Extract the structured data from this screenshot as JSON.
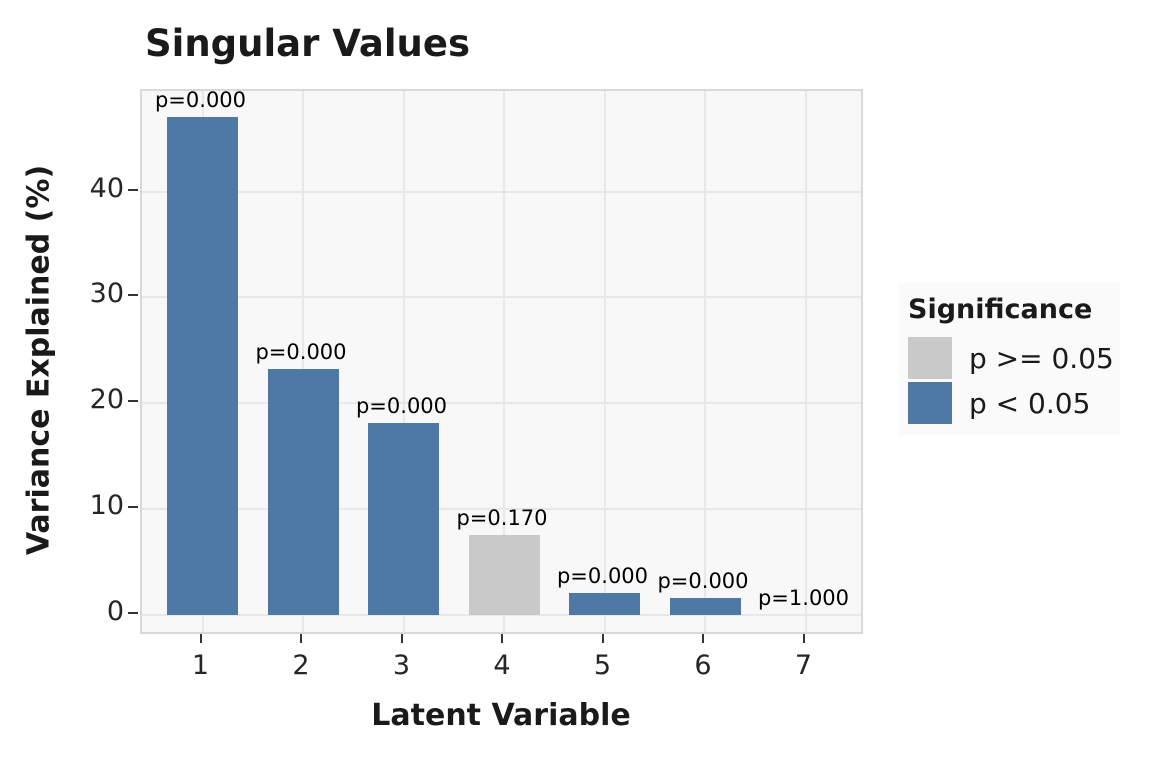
{
  "chart_data": {
    "type": "bar",
    "title": "Singular Values",
    "xlabel": "Latent Variable",
    "ylabel": "Variance Explained (%)",
    "categories": [
      "1",
      "2",
      "3",
      "4",
      "5",
      "6",
      "7"
    ],
    "values": [
      47.0,
      23.2,
      18.1,
      7.5,
      2.1,
      1.6,
      0.0
    ],
    "bar_labels": [
      "p=0.000",
      "p=0.000",
      "p=0.000",
      "p=0.170",
      "p=0.000",
      "p=0.000",
      "p=1.000"
    ],
    "p_values": [
      0.0,
      0.0,
      0.0,
      0.17,
      0.0,
      0.0,
      1.0
    ],
    "significant": [
      true,
      true,
      true,
      false,
      true,
      true,
      false
    ],
    "yticks": [
      0,
      10,
      20,
      30,
      40
    ],
    "ylim": [
      -2.0,
      49.5
    ],
    "grid": true,
    "legend": {
      "title": "Significance",
      "position": "right",
      "entries": [
        {
          "label": "p >= 0.05",
          "color": "#c9c9c9"
        },
        {
          "label": "p < 0.05",
          "color": "#4e79a7"
        }
      ]
    },
    "colors": {
      "significant_bar": "#4e79a7",
      "nonsignificant_bar": "#c9c9c9",
      "panel_background": "#f8f8f8",
      "gridline": "#e8e8e8",
      "panel_border": "#d9d9d9"
    }
  }
}
